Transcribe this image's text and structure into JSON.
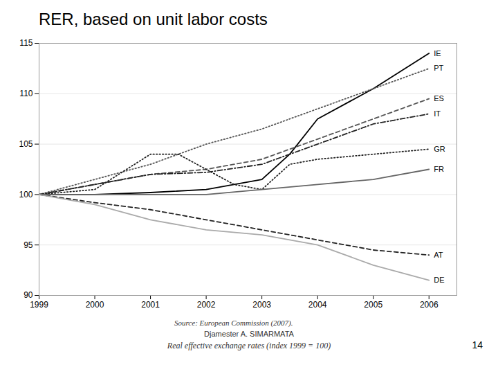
{
  "chart_data": {
    "type": "line",
    "title": "RER, based on unit labor costs",
    "subtitle": "Real effective exchange rates (index 1999 = 100)",
    "annotations": [
      "Source:   European Commission (2007).",
      "Djamester A. SIMARMATA",
      "14"
    ],
    "xlim": [
      1999,
      2006.5
    ],
    "xticks": [
      1999,
      2000,
      2001,
      2002,
      2003,
      2004,
      2005,
      2006
    ],
    "ylim": [
      90,
      115
    ],
    "yticks": [
      90,
      95,
      100,
      105,
      110,
      115
    ],
    "grid": "y",
    "series": [
      {
        "name": "IE",
        "color": "#000000",
        "line_style": "solid",
        "x": [
          1999,
          2000,
          2001,
          2002,
          2003,
          2003.5,
          2004,
          2005,
          2006
        ],
        "values": [
          100,
          100.0,
          100.2,
          100.5,
          101.5,
          104,
          107.5,
          110.5,
          114
        ]
      },
      {
        "name": "PT",
        "color": "#555555",
        "line_style": "dotted",
        "x": [
          1999,
          2000,
          2001,
          2002,
          2003,
          2004,
          2005,
          2006
        ],
        "values": [
          100,
          101.5,
          103,
          105,
          106.5,
          108.5,
          110.5,
          112.5
        ]
      },
      {
        "name": "ES",
        "color": "#555555",
        "line_style": "dashed",
        "x": [
          1999,
          2000,
          2001,
          2002,
          2003,
          2004,
          2005,
          2006
        ],
        "values": [
          100,
          101,
          102,
          102.5,
          103.5,
          105.5,
          107.5,
          109.5
        ]
      },
      {
        "name": "IT",
        "color": "#222222",
        "line_style": "dashdot",
        "x": [
          1999,
          2000,
          2001,
          2002,
          2003,
          2004,
          2005,
          2006
        ],
        "values": [
          100,
          101,
          102,
          102.2,
          103,
          105,
          107,
          108
        ]
      },
      {
        "name": "GR",
        "color": "#222222",
        "line_style": "dotted",
        "x": [
          1999,
          2000,
          2001,
          2001.5,
          2002,
          2002.5,
          2003,
          2003.5,
          2004,
          2005,
          2006
        ],
        "values": [
          100,
          100.5,
          104,
          104,
          102.5,
          101,
          100.5,
          103,
          103.5,
          104,
          104.5
        ]
      },
      {
        "name": "FR",
        "color": "#666666",
        "line_style": "solid",
        "x": [
          1999,
          2000,
          2001,
          2002,
          2003,
          2004,
          2005,
          2006
        ],
        "values": [
          100,
          100,
          100,
          100,
          100.5,
          101,
          101.5,
          102.5
        ]
      },
      {
        "name": "AT",
        "color": "#222222",
        "line_style": "dashed",
        "x": [
          1999,
          2000,
          2001,
          2002,
          2003,
          2004,
          2005,
          2006
        ],
        "values": [
          100,
          99.2,
          98.5,
          97.5,
          96.5,
          95.5,
          94.5,
          94.0
        ]
      },
      {
        "name": "DE",
        "color": "#aaaaaa",
        "line_style": "solid",
        "x": [
          1999,
          2000,
          2001,
          2002,
          2003,
          2004,
          2005,
          2006
        ],
        "values": [
          100,
          99,
          97.5,
          96.5,
          96,
          95,
          93,
          91.5
        ]
      }
    ]
  }
}
